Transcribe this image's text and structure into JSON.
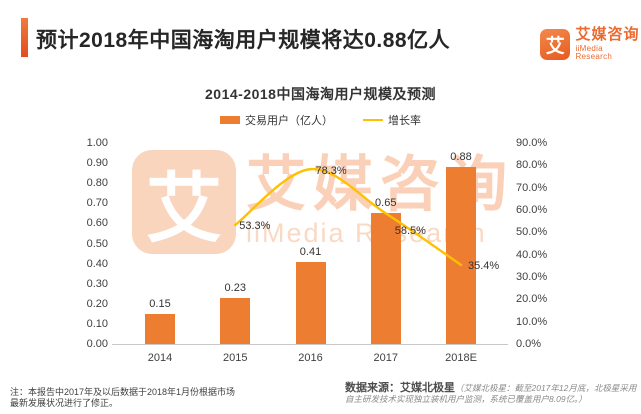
{
  "header": {
    "title": "预计2018年中国海淘用户规模将达0.88亿人",
    "accent_color": "#E8562A"
  },
  "logo": {
    "icon_char": "艾",
    "brand_cn": "艾媒咨询",
    "brand_en": "iiMedia Research",
    "color": "#EB6A30"
  },
  "watermark": {
    "icon_char": "艾",
    "text_cn": "艾媒咨询",
    "text_en": "iiMedia Research"
  },
  "chart_data": {
    "type": "bar+line",
    "title": "2014-2018中国海淘用户规模及预测",
    "categories": [
      "2014",
      "2015",
      "2016",
      "2017",
      "2018E"
    ],
    "series": [
      {
        "name": "交易用户（亿人）",
        "type": "bar",
        "axis": "left",
        "color": "#ED7D31",
        "values": [
          0.15,
          0.23,
          0.41,
          0.65,
          0.88
        ],
        "labels": [
          "0.15",
          "0.23",
          "0.41",
          "0.65",
          "0.88"
        ]
      },
      {
        "name": "增长率",
        "type": "line",
        "axis": "right",
        "color": "#FFC000",
        "values": [
          null,
          53.3,
          78.3,
          58.5,
          35.4
        ],
        "labels": [
          null,
          "53.3%",
          "78.3%",
          "58.5%",
          "35.4%"
        ]
      }
    ],
    "left_axis": {
      "min": 0,
      "max": 1.0,
      "step": 0.1,
      "decimals": 2
    },
    "right_axis": {
      "min": 0,
      "max": 90,
      "step": 10,
      "decimals": 1,
      "suffix": "%"
    },
    "grid": false,
    "legend_position": "top"
  },
  "footer": {
    "note_left": "注：本报告中2017年及以后数据于2018年1月份根据市场最新发展状况进行了修正。",
    "source_bold": "数据来源：艾媒北极星",
    "source_detail": "（艾媒北极星：截至2017年12月底，北极星采用自主研发技术实现独立装机用户监测，系统已覆盖用户8.09亿。）"
  }
}
